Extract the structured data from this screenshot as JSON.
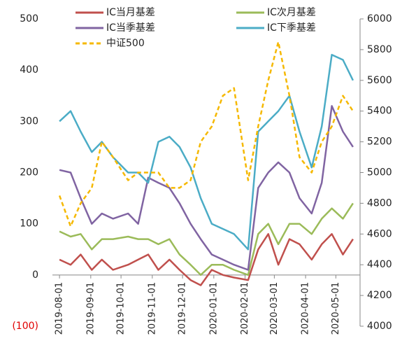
{
  "chart_data": {
    "type": "line",
    "x": [
      "2019-08-01",
      "2019-08-12",
      "2019-08-22",
      "2019-09-02",
      "2019-09-12",
      "2019-09-23",
      "2019-10-08",
      "2019-10-18",
      "2019-10-28",
      "2019-11-07",
      "2019-11-18",
      "2019-11-28",
      "2019-12-09",
      "2019-12-19",
      "2019-12-30",
      "2020-01-10",
      "2020-01-21",
      "2020-02-04",
      "2020-02-14",
      "2020-02-24",
      "2020-03-05",
      "2020-03-16",
      "2020-03-26",
      "2020-04-07",
      "2020-04-17",
      "2020-04-27",
      "2020-05-08",
      "2020-05-18"
    ],
    "series": [
      {
        "name": "IC当月基差",
        "color": "#c0504d",
        "values": [
          30,
          20,
          40,
          10,
          30,
          10,
          20,
          30,
          40,
          10,
          30,
          10,
          -10,
          -20,
          10,
          0,
          -5,
          -10,
          50,
          80,
          20,
          70,
          60,
          30,
          60,
          80,
          40,
          70
        ]
      },
      {
        "name": "IC次月基差",
        "color": "#9bbb59",
        "values": [
          85,
          75,
          80,
          50,
          70,
          70,
          75,
          70,
          70,
          60,
          70,
          40,
          20,
          0,
          20,
          20,
          10,
          0,
          80,
          100,
          60,
          100,
          100,
          80,
          110,
          130,
          110,
          140
        ]
      },
      {
        "name": "IC当季基差",
        "color": "#8064a2",
        "values": [
          205,
          200,
          150,
          100,
          120,
          110,
          120,
          100,
          190,
          180,
          170,
          140,
          100,
          70,
          40,
          30,
          20,
          10,
          170,
          200,
          220,
          200,
          150,
          120,
          180,
          330,
          280,
          250
        ]
      },
      {
        "name": "IC下季基差",
        "color": "#4bacc6",
        "values": [
          300,
          320,
          280,
          240,
          260,
          230,
          200,
          200,
          180,
          260,
          270,
          250,
          210,
          150,
          100,
          90,
          80,
          50,
          280,
          300,
          320,
          350,
          280,
          210,
          290,
          430,
          420,
          380
        ]
      },
      {
        "name": "中证500",
        "color": "#f5b800",
        "dashed": true,
        "axis": "y2",
        "values": [
          4850,
          4650,
          4800,
          4900,
          5200,
          5100,
          4950,
          5000,
          5000,
          5000,
          4900,
          4900,
          4950,
          5200,
          5300,
          5500,
          5550,
          4950,
          5300,
          5600,
          5850,
          5500,
          5100,
          5000,
          5200,
          5300,
          5500,
          5400
        ]
      }
    ],
    "xlim": [
      "2019-07-25",
      "2020-05-25"
    ],
    "xticks": [
      "2019-08-01",
      "2019-09-01",
      "2019-10-01",
      "2019-11-01",
      "2019-12-01",
      "2020-01-01",
      "2020-02-01",
      "2020-03-01",
      "2020-04-01",
      "2020-05-01"
    ],
    "ylim": [
      -100,
      500
    ],
    "yticks": [
      {
        "value": -100,
        "label": "(100)"
      },
      0,
      100,
      200,
      300,
      400,
      500
    ],
    "negative_label_color": "#e00000",
    "y2lim": [
      4000,
      6000
    ],
    "y2ticks": [
      4000,
      4200,
      4400,
      4600,
      4800,
      5000,
      5200,
      5400,
      5600,
      5800,
      6000
    ],
    "grid": false
  }
}
